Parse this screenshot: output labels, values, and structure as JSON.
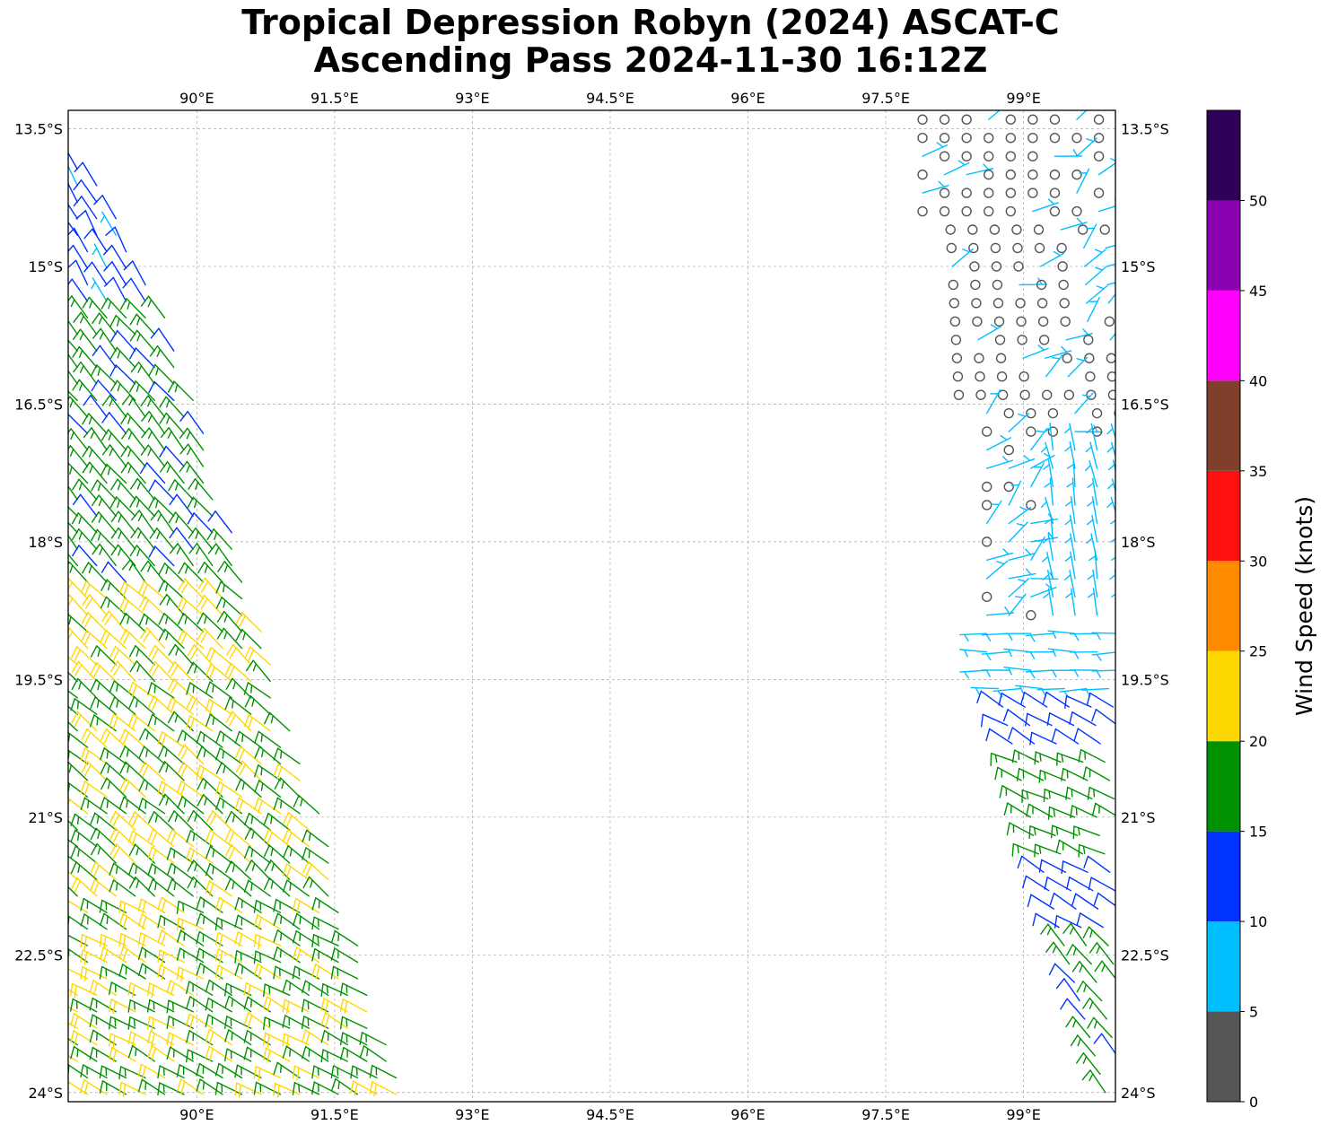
{
  "title_line1": "Tropical Depression Robyn (2024) ASCAT-C",
  "title_line2": "Ascending Pass 2024-11-30 16:12Z",
  "chart_data": {
    "type": "wind-barb-map",
    "lon_range": [
      88.6,
      100.0
    ],
    "lat_range": [
      -24.1,
      -13.3
    ],
    "lon_ticks": [
      "90°E",
      "91.5°E",
      "93°E",
      "94.5°E",
      "96°E",
      "97.5°E",
      "99°E"
    ],
    "lon_tick_values": [
      90,
      91.5,
      93,
      94.5,
      96,
      97.5,
      99
    ],
    "lat_ticks": [
      "13.5°S",
      "15°S",
      "16.5°S",
      "18°S",
      "19.5°S",
      "21°S",
      "22.5°S",
      "24°S"
    ],
    "lat_tick_values": [
      -13.5,
      -15,
      -16.5,
      -18,
      -19.5,
      -21,
      -22.5,
      -24
    ],
    "grid": true,
    "colorbar": {
      "label": "Wind Speed (knots)",
      "ticks": [
        "0",
        "5",
        "10",
        "15",
        "20",
        "25",
        "30",
        "35",
        "40",
        "45",
        "50"
      ],
      "boundaries": [
        0,
        5,
        10,
        15,
        20,
        25,
        30,
        35,
        40,
        45,
        50,
        55
      ],
      "colors": [
        "#555555",
        "#00bfff",
        "#0033ff",
        "#009100",
        "#ffd700",
        "#ff8c00",
        "#ff1010",
        "#7f3f2a",
        "#ff00ff",
        "#8b00b0",
        "#2e0058"
      ]
    },
    "passes": [
      {
        "name": "west swath",
        "north_edge": [
          [
            88.6,
            -13.4
          ],
          [
            89.7,
            -15.6
          ]
        ],
        "south_edge": [
          [
            88.6,
            -24.1
          ],
          [
            92.3,
            -24.1
          ]
        ],
        "bands": [
          {
            "lat_from": -13.3,
            "lat_to": -15.5,
            "speed": 12,
            "direction_deg": 330
          },
          {
            "lat_from": -15.5,
            "lat_to": -18.6,
            "speed": 17,
            "direction_deg": 320
          },
          {
            "lat_from": -18.6,
            "lat_to": -19.6,
            "speed": 21,
            "direction_deg": 315
          },
          {
            "lat_from": -19.6,
            "lat_to": -22.0,
            "speed": 19,
            "direction_deg": 310
          },
          {
            "lat_from": -22.0,
            "lat_to": -24.1,
            "speed": 19,
            "direction_deg": 300
          }
        ]
      },
      {
        "name": "east swath",
        "bands": [
          {
            "lat_from": -13.3,
            "lat_to": -18.8,
            "speed": 3,
            "direction_deg": 45
          },
          {
            "lat_from": -16.8,
            "lat_to": -18.8,
            "speed": 7,
            "direction_deg": 350
          },
          {
            "lat_from": -18.8,
            "lat_to": -19.7,
            "speed": 8,
            "direction_deg": 270
          },
          {
            "lat_from": -19.7,
            "lat_to": -20.3,
            "speed": 13,
            "direction_deg": 300
          },
          {
            "lat_from": -20.3,
            "lat_to": -21.5,
            "speed": 17,
            "direction_deg": 295
          },
          {
            "lat_from": -21.5,
            "lat_to": -22.3,
            "speed": 12,
            "direction_deg": 300
          },
          {
            "lat_from": -22.3,
            "lat_to": -24.1,
            "speed": 16,
            "direction_deg": 320
          }
        ]
      }
    ]
  }
}
